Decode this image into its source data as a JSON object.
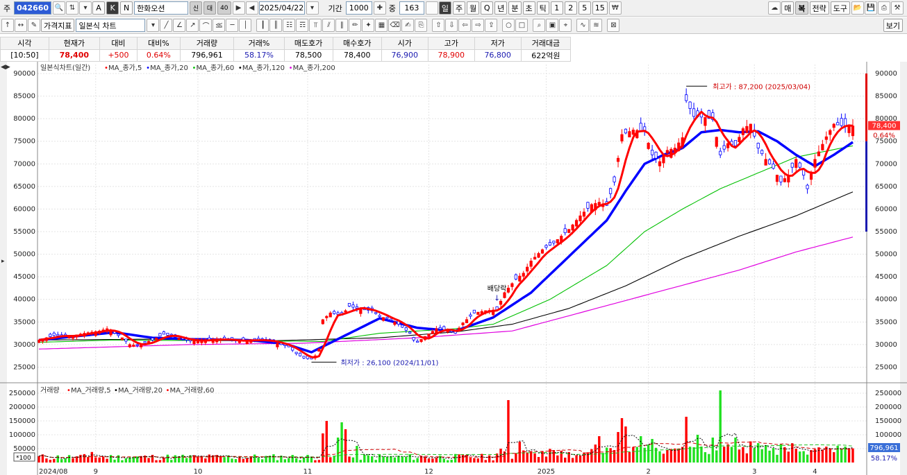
{
  "toolbar": {
    "type_label": "주",
    "stock_code": "042660",
    "btn_a": "A",
    "btn_k": "K",
    "btn_n": "N",
    "stock_name": "한화오션",
    "badge_credit": "신",
    "badge_margin": "대",
    "badge_40": "40",
    "date": "2025/04/22",
    "period_label": "기간",
    "period_value": "1000",
    "count_label": "중",
    "count_value": "163",
    "interval_day": "일",
    "interval_week": "주",
    "interval_month": "월",
    "interval_quarter": "Q",
    "interval_year": "년",
    "interval_min": "분",
    "interval_sec": "초",
    "interval_tick": "틱",
    "num1": "1",
    "num2": "2",
    "num5": "5",
    "num15": "15",
    "btn_buy": "매",
    "btn_restore": "복",
    "btn_strategy": "전략",
    "btn_tools": "도구"
  },
  "toolbar2": {
    "indicator_btn": "가격지표",
    "chart_type": "일본식 차트",
    "view_btn": "보기"
  },
  "quote": {
    "headers": [
      "시각",
      "현재가",
      "대비",
      "대비%",
      "거래량",
      "거래%",
      "매도호가",
      "매수호가",
      "시가",
      "고가",
      "저가",
      "거래대금"
    ],
    "values": [
      "[10:50]",
      "78,400",
      "+500",
      "0.64%",
      "796,961",
      "58.17%",
      "78,500",
      "78,400",
      "76,900",
      "78,900",
      "76,800",
      "622억원"
    ]
  },
  "colors": {
    "up": "#ff0000",
    "down": "#0000ff",
    "ma5": "#ff0000",
    "ma20": "#0000ff",
    "ma60": "#00c000",
    "ma120": "#000000",
    "ma200": "#e000e0",
    "vol_up": "#ff0000",
    "vol_down": "#20e020"
  },
  "chart_data": {
    "type": "candlestick",
    "title": "일본식차트(일간)",
    "legend": [
      "MA_종가,5",
      "MA_종가,20",
      "MA_종가,60",
      "MA_종가,120",
      "MA_종가,200"
    ],
    "ylim": [
      22000,
      92000
    ],
    "yticks": [
      25000,
      30000,
      35000,
      40000,
      45000,
      50000,
      55000,
      60000,
      65000,
      70000,
      75000,
      80000,
      85000,
      90000
    ],
    "xticks": [
      "2024/08",
      "9",
      "10",
      "11",
      "12",
      "2025",
      "2",
      "3",
      "4"
    ],
    "max_annotation": "최고가 : 87,200 (2025/03/04)",
    "min_annotation": "최저가 : 26,100 (2024/11/01)",
    "dividend_annotation": "배당락",
    "current_price_label": "78,400",
    "current_change_label": "0.64%",
    "price_path": [
      [
        0,
        31000
      ],
      [
        4,
        32000
      ],
      [
        8,
        31800
      ],
      [
        12,
        32500
      ],
      [
        16,
        33000
      ],
      [
        18,
        33500
      ],
      [
        22,
        31500
      ],
      [
        24,
        30000
      ],
      [
        26,
        29800
      ],
      [
        30,
        31000
      ],
      [
        33,
        32300
      ],
      [
        36,
        31600
      ],
      [
        40,
        30800
      ],
      [
        44,
        31000
      ],
      [
        48,
        31200
      ],
      [
        52,
        30800
      ],
      [
        56,
        31000
      ],
      [
        60,
        30900
      ],
      [
        62,
        30500
      ],
      [
        66,
        29500
      ],
      [
        68,
        28000
      ],
      [
        70,
        27000
      ],
      [
        72,
        26800
      ],
      [
        73,
        27500
      ],
      [
        74,
        29000
      ],
      [
        75,
        35500
      ],
      [
        77,
        37000
      ],
      [
        80,
        36500
      ],
      [
        82,
        38500
      ],
      [
        85,
        37800
      ],
      [
        88,
        37500
      ],
      [
        90,
        36200
      ],
      [
        92,
        35800
      ],
      [
        95,
        34500
      ],
      [
        98,
        32500
      ],
      [
        99,
        31000
      ],
      [
        100,
        30500
      ],
      [
        102,
        31800
      ],
      [
        105,
        33500
      ],
      [
        108,
        33200
      ],
      [
        110,
        32500
      ],
      [
        112,
        34800
      ],
      [
        115,
        37000
      ],
      [
        118,
        37500
      ],
      [
        121,
        37700
      ],
      [
        123,
        41500
      ],
      [
        126,
        44500
      ],
      [
        128,
        45800
      ],
      [
        130,
        48500
      ],
      [
        133,
        51000
      ],
      [
        136,
        52500
      ],
      [
        138,
        54000
      ],
      [
        140,
        55500
      ],
      [
        143,
        58500
      ],
      [
        146,
        61000
      ],
      [
        148,
        61500
      ],
      [
        150,
        60800
      ],
      [
        152,
        66000
      ],
      [
        154,
        76500
      ],
      [
        157,
        77500
      ],
      [
        160,
        77200
      ],
      [
        162,
        72000
      ],
      [
        164,
        70500
      ],
      [
        166,
        73000
      ],
      [
        168,
        73500
      ],
      [
        170,
        75800
      ],
      [
        171,
        84000
      ],
      [
        173,
        80500
      ],
      [
        176,
        80300
      ],
      [
        178,
        79800
      ],
      [
        180,
        72000
      ],
      [
        182,
        74500
      ],
      [
        184,
        74000
      ],
      [
        186,
        77800
      ],
      [
        188,
        78800
      ],
      [
        190,
        73500
      ],
      [
        192,
        71000
      ],
      [
        194,
        69000
      ],
      [
        196,
        66000
      ],
      [
        198,
        67500
      ],
      [
        200,
        71000
      ],
      [
        202,
        67500
      ],
      [
        203,
        64500
      ],
      [
        205,
        71000
      ],
      [
        208,
        76000
      ],
      [
        210,
        78800
      ],
      [
        213,
        78300
      ],
      [
        215,
        78400
      ]
    ],
    "ma20_path": [
      [
        0,
        31000
      ],
      [
        20,
        32700
      ],
      [
        30,
        31500
      ],
      [
        40,
        31200
      ],
      [
        55,
        31000
      ],
      [
        65,
        30200
      ],
      [
        72,
        28300
      ],
      [
        78,
        30800
      ],
      [
        90,
        35800
      ],
      [
        100,
        33700
      ],
      [
        110,
        33000
      ],
      [
        120,
        36000
      ],
      [
        130,
        41500
      ],
      [
        140,
        49500
      ],
      [
        150,
        57500
      ],
      [
        155,
        64000
      ],
      [
        160,
        70000
      ],
      [
        165,
        72000
      ],
      [
        170,
        73500
      ],
      [
        175,
        77000
      ],
      [
        180,
        77500
      ],
      [
        185,
        77000
      ],
      [
        190,
        77200
      ],
      [
        195,
        75000
      ],
      [
        200,
        72000
      ],
      [
        205,
        69500
      ],
      [
        210,
        72000
      ],
      [
        215,
        74800
      ]
    ],
    "ma60_path": [
      [
        0,
        30500
      ],
      [
        20,
        31000
      ],
      [
        40,
        30900
      ],
      [
        60,
        30800
      ],
      [
        75,
        30700
      ],
      [
        90,
        32500
      ],
      [
        110,
        33500
      ],
      [
        120,
        34500
      ],
      [
        135,
        40000
      ],
      [
        150,
        47500
      ],
      [
        160,
        55000
      ],
      [
        170,
        60000
      ],
      [
        180,
        64500
      ],
      [
        190,
        68000
      ],
      [
        200,
        71500
      ],
      [
        215,
        74000
      ]
    ],
    "ma120_path": [
      [
        0,
        31000
      ],
      [
        30,
        31200
      ],
      [
        60,
        30800
      ],
      [
        90,
        31500
      ],
      [
        110,
        32800
      ],
      [
        125,
        34500
      ],
      [
        140,
        38000
      ],
      [
        155,
        43000
      ],
      [
        170,
        49000
      ],
      [
        185,
        54000
      ],
      [
        200,
        58500
      ],
      [
        215,
        63800
      ]
    ],
    "ma200_path": [
      [
        0,
        29000
      ],
      [
        40,
        30000
      ],
      [
        70,
        30300
      ],
      [
        100,
        31500
      ],
      [
        125,
        33000
      ],
      [
        145,
        37500
      ],
      [
        165,
        42000
      ],
      [
        185,
        46500
      ],
      [
        200,
        50500
      ],
      [
        215,
        53800
      ]
    ],
    "volume": {
      "title": "거래량",
      "legend": [
        "MA_거래량,5",
        "MA_거래량,20",
        "MA_거래량,60"
      ],
      "ylim": [
        0,
        270000
      ],
      "yticks": [
        50000,
        100000,
        150000,
        200000,
        250000
      ],
      "unit_label": "*100",
      "current_label": "796,961",
      "current_pct_label": "58.17%",
      "base_level": 15000,
      "spikes": [
        [
          14,
          38000
        ],
        [
          75,
          105000
        ],
        [
          76,
          150000
        ],
        [
          79,
          90000
        ],
        [
          80,
          145000
        ],
        [
          81,
          120000
        ],
        [
          84,
          60000
        ],
        [
          122,
          50000
        ],
        [
          123,
          40000
        ],
        [
          124,
          225000
        ],
        [
          127,
          75000
        ],
        [
          148,
          95000
        ],
        [
          153,
          110000
        ],
        [
          154,
          160000
        ],
        [
          155,
          130000
        ],
        [
          159,
          95000
        ],
        [
          162,
          85000
        ],
        [
          171,
          165000
        ],
        [
          174,
          100000
        ],
        [
          178,
          90000
        ],
        [
          180,
          260000
        ],
        [
          184,
          90000
        ],
        [
          190,
          70000
        ],
        [
          200,
          50000
        ]
      ]
    }
  }
}
